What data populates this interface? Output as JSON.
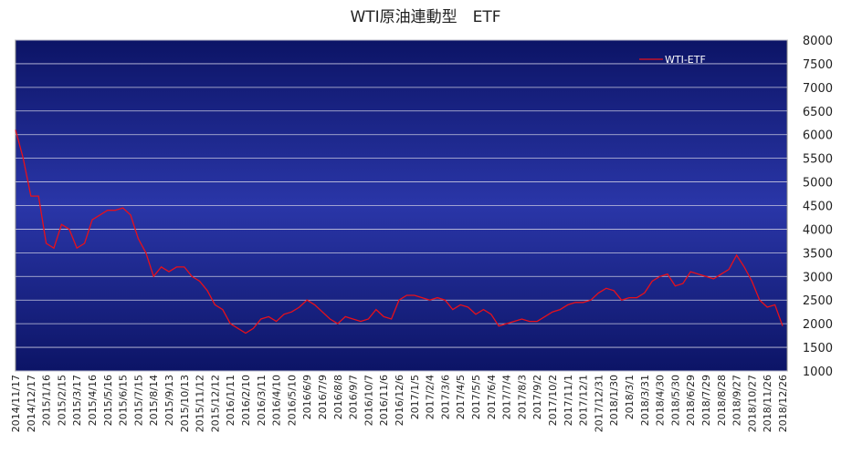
{
  "chart_data": {
    "type": "line",
    "title": "WTI原油連動型　ETF",
    "categories": [
      "2014/11/17",
      null,
      "2014/12/17",
      null,
      "2015/1/16",
      null,
      "2015/2/15",
      null,
      "2015/3/17",
      null,
      "2015/4/16",
      null,
      "2015/5/16",
      null,
      "2015/6/15",
      null,
      "2015/7/15",
      null,
      "2015/8/14",
      null,
      "2015/9/13",
      null,
      "2015/10/13",
      null,
      "2015/11/12",
      null,
      "2015/12/12",
      null,
      "2016/1/11",
      null,
      "2016/2/10",
      null,
      "2016/3/11",
      null,
      "2016/4/10",
      null,
      "2016/5/10",
      null,
      "2016/6/9",
      null,
      "2016/7/9",
      null,
      "2016/8/8",
      null,
      "2016/9/7",
      null,
      "2016/10/7",
      null,
      "2016/11/6",
      null,
      "2016/12/6",
      null,
      "2017/1/5",
      null,
      "2017/2/4",
      null,
      "2017/3/6",
      null,
      "2017/4/5",
      null,
      "2017/5/5",
      null,
      "2017/6/4",
      null,
      "2017/7/4",
      null,
      "2017/8/3",
      null,
      "2017/9/2",
      null,
      "2017/10/2",
      null,
      "2017/11/1",
      null,
      "2017/12/1",
      null,
      "2017/12/31",
      null,
      "2018/1/30",
      null,
      "2018/3/1",
      null,
      "2018/3/31",
      null,
      "2018/4/30",
      null,
      "2018/5/30",
      null,
      "2018/6/29",
      null,
      "2018/7/29",
      null,
      "2018/8/28",
      null,
      "2018/9/27",
      null,
      "2018/10/27",
      null,
      "2018/11/26",
      null,
      "2018/12/26"
    ],
    "series": [
      {
        "name": "WTI-ETF",
        "color": "#e8101a",
        "values": [
          6100,
          5500,
          4700,
          4700,
          3700,
          3600,
          4100,
          4000,
          3600,
          3700,
          4200,
          4300,
          4400,
          4400,
          4450,
          4300,
          3800,
          3500,
          3000,
          3200,
          3100,
          3200,
          3200,
          3000,
          2900,
          2700,
          2400,
          2300,
          2000,
          1900,
          1800,
          1900,
          2100,
          2150,
          2050,
          2200,
          2250,
          2350,
          2500,
          2400,
          2250,
          2100,
          2000,
          2150,
          2100,
          2050,
          2100,
          2300,
          2150,
          2100,
          2500,
          2600,
          2600,
          2550,
          2500,
          2550,
          2500,
          2300,
          2400,
          2350,
          2200,
          2300,
          2200,
          1950,
          2000,
          2050,
          2100,
          2050,
          2050,
          2150,
          2250,
          2300,
          2400,
          2450,
          2450,
          2500,
          2650,
          2750,
          2700,
          2500,
          2550,
          2550,
          2650,
          2900,
          3000,
          3050,
          2800,
          2850,
          3100,
          3050,
          3000,
          2950,
          3050,
          3150,
          3450,
          3200,
          2900,
          2500,
          2350,
          2400,
          1950
        ]
      }
    ],
    "ylim": [
      1000,
      8000
    ],
    "yticks": [
      1000,
      1500,
      2000,
      2500,
      3000,
      3500,
      4000,
      4500,
      5000,
      5500,
      6000,
      6500,
      7000,
      7500,
      8000
    ],
    "grid": true,
    "legend": "upper right"
  }
}
